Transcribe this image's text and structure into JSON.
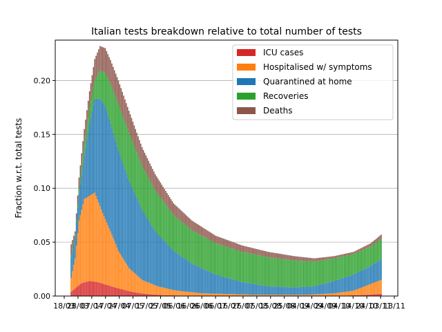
{
  "chart_data": {
    "type": "bar",
    "stacked": true,
    "title": "Italian tests breakdown relative to total number of tests",
    "xlabel": "",
    "ylabel": "Fraction w.r.t. total tests",
    "ylim": [
      0,
      0.2375
    ],
    "yticks": [
      0.0,
      0.05,
      0.1,
      0.15,
      0.2
    ],
    "ytick_labels": [
      "0.00",
      "0.05",
      "0.10",
      "0.15",
      "0.20"
    ],
    "grid": "horizontal",
    "legend_position": "top-right",
    "x_tick_labels_note": "overlapping date labels, mostly illegible",
    "xtick_labels": [
      "18/03",
      "28/03",
      "07/04",
      "17/04",
      "27/04",
      "07/05",
      "17/05",
      "27/05",
      "06/06",
      "16/06",
      "26/06",
      "06/07",
      "16/07",
      "26/07",
      "05/08",
      "15/08",
      "25/08",
      "04/09",
      "14/09",
      "24/09",
      "04/10",
      "14/10",
      "24/10",
      "03/11",
      "13/11"
    ],
    "series_order": [
      "ICU cases",
      "Hospitalised w/ symptoms",
      "Quarantined at home",
      "Recoveries",
      "Deaths"
    ],
    "series": [
      {
        "name": "ICU cases",
        "color": "#d62728",
        "points": [
          [
            0,
            0.004
          ],
          [
            4,
            0.008
          ],
          [
            8,
            0.012
          ],
          [
            14,
            0.014
          ],
          [
            20,
            0.013
          ],
          [
            28,
            0.01
          ],
          [
            36,
            0.007
          ],
          [
            46,
            0.004
          ],
          [
            56,
            0.002
          ],
          [
            70,
            0.0008
          ],
          [
            90,
            0.0003
          ],
          [
            150,
            0.0001
          ],
          [
            200,
            0.0002
          ],
          [
            220,
            0.0008
          ],
          [
            236,
            0.002
          ]
        ]
      },
      {
        "name": "Hospitalised w/ symptoms",
        "color": "#ff7f0e",
        "points": [
          [
            0,
            0.017
          ],
          [
            3,
            0.035
          ],
          [
            6,
            0.07
          ],
          [
            10,
            0.09
          ],
          [
            14,
            0.093
          ],
          [
            18,
            0.096
          ],
          [
            24,
            0.077
          ],
          [
            30,
            0.06
          ],
          [
            36,
            0.042
          ],
          [
            44,
            0.026
          ],
          [
            54,
            0.015
          ],
          [
            66,
            0.009
          ],
          [
            80,
            0.005
          ],
          [
            100,
            0.0025
          ],
          [
            140,
            0.0012
          ],
          [
            180,
            0.0012
          ],
          [
            200,
            0.0025
          ],
          [
            215,
            0.005
          ],
          [
            236,
            0.015
          ]
        ]
      },
      {
        "name": "Quarantined at home",
        "color": "#1f77b4",
        "points": [
          [
            0,
            0.036
          ],
          [
            3,
            0.055
          ],
          [
            6,
            0.095
          ],
          [
            10,
            0.13
          ],
          [
            14,
            0.16
          ],
          [
            18,
            0.183
          ],
          [
            22,
            0.183
          ],
          [
            26,
            0.176
          ],
          [
            30,
            0.16
          ],
          [
            36,
            0.135
          ],
          [
            44,
            0.107
          ],
          [
            54,
            0.08
          ],
          [
            64,
            0.06
          ],
          [
            78,
            0.042
          ],
          [
            92,
            0.03
          ],
          [
            110,
            0.02
          ],
          [
            130,
            0.013
          ],
          [
            150,
            0.009
          ],
          [
            170,
            0.008
          ],
          [
            185,
            0.009
          ],
          [
            200,
            0.014
          ],
          [
            215,
            0.02
          ],
          [
            228,
            0.028
          ],
          [
            236,
            0.034
          ]
        ]
      },
      {
        "name": "Recoveries",
        "color": "#2ca02c",
        "points": [
          [
            0,
            0.038
          ],
          [
            3,
            0.057
          ],
          [
            6,
            0.1
          ],
          [
            10,
            0.14
          ],
          [
            14,
            0.175
          ],
          [
            18,
            0.2
          ],
          [
            22,
            0.21
          ],
          [
            26,
            0.207
          ],
          [
            30,
            0.197
          ],
          [
            36,
            0.178
          ],
          [
            44,
            0.152
          ],
          [
            54,
            0.121
          ],
          [
            64,
            0.098
          ],
          [
            78,
            0.075
          ],
          [
            92,
            0.061
          ],
          [
            110,
            0.049
          ],
          [
            130,
            0.041
          ],
          [
            150,
            0.036
          ],
          [
            170,
            0.033
          ],
          [
            185,
            0.032
          ],
          [
            200,
            0.035
          ],
          [
            215,
            0.039
          ],
          [
            228,
            0.046
          ],
          [
            236,
            0.053
          ]
        ]
      },
      {
        "name": "Deaths",
        "color": "#8c564b",
        "points": [
          [
            0,
            0.048
          ],
          [
            3,
            0.06
          ],
          [
            6,
            0.11
          ],
          [
            10,
            0.155
          ],
          [
            14,
            0.19
          ],
          [
            18,
            0.22
          ],
          [
            22,
            0.232
          ],
          [
            26,
            0.23
          ],
          [
            30,
            0.219
          ],
          [
            36,
            0.2
          ],
          [
            44,
            0.172
          ],
          [
            54,
            0.138
          ],
          [
            64,
            0.113
          ],
          [
            78,
            0.086
          ],
          [
            92,
            0.07
          ],
          [
            110,
            0.056
          ],
          [
            130,
            0.047
          ],
          [
            150,
            0.041
          ],
          [
            170,
            0.037
          ],
          [
            185,
            0.035
          ],
          [
            200,
            0.037
          ],
          [
            215,
            0.041
          ],
          [
            228,
            0.049
          ],
          [
            236,
            0.057
          ]
        ]
      }
    ]
  }
}
